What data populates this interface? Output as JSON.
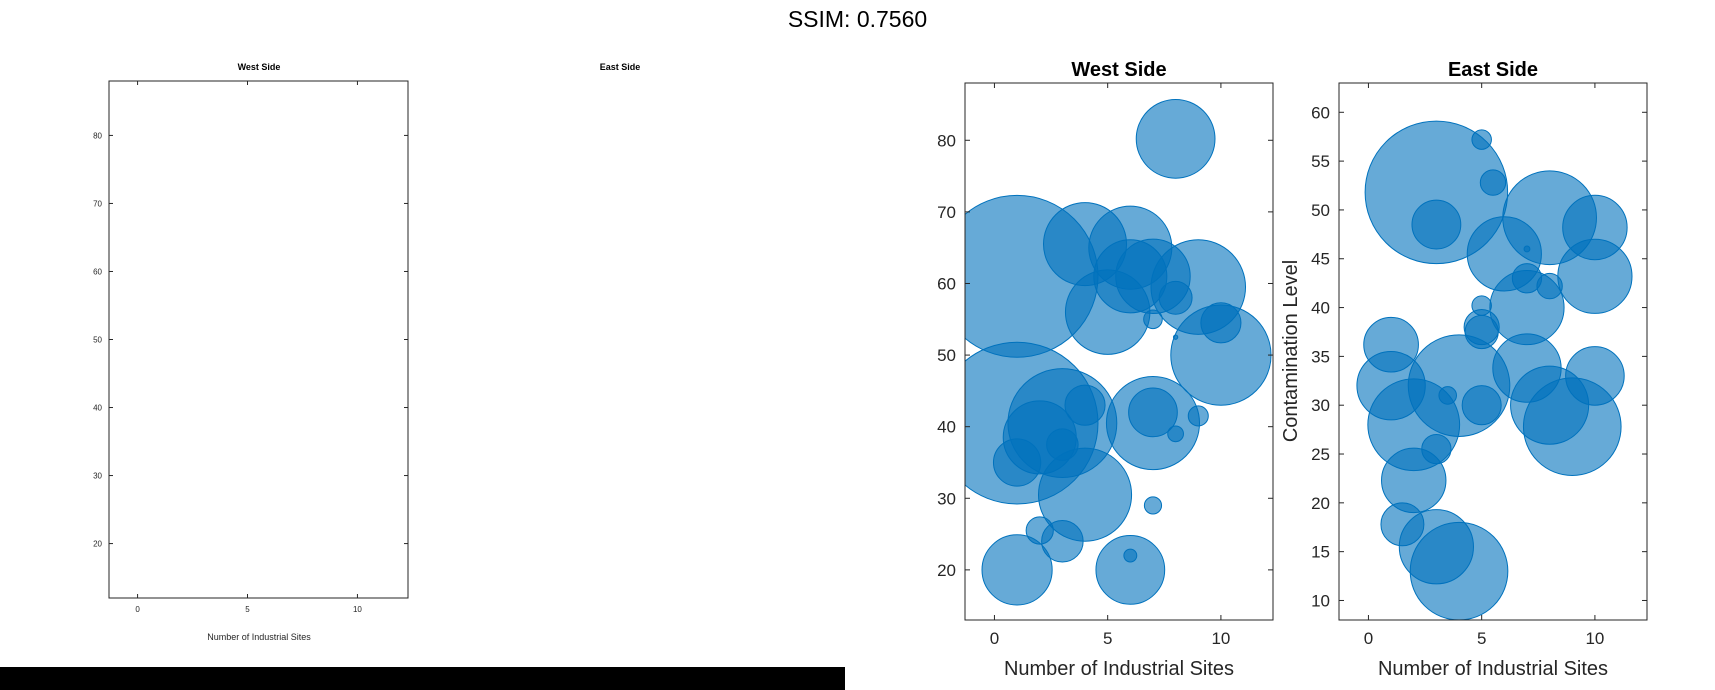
{
  "header": {
    "title": "SSIM: 0.7560"
  },
  "chart_data": [
    {
      "type": "scatter",
      "title": "West Side",
      "xlabel": "Number of Industrial Sites",
      "ylabel": "",
      "xlim": [
        -1.3,
        12.3
      ],
      "ylim": [
        12,
        88
      ],
      "xticks": [
        0,
        5,
        10
      ],
      "yticks": [
        20,
        30,
        40,
        50,
        60,
        70,
        80
      ],
      "points": []
    },
    {
      "type": "scatter",
      "title": "East Side",
      "xlabel": "",
      "ylabel": "",
      "points": []
    },
    {
      "type": "scatter",
      "title": "West Side",
      "xlabel": "Number of Industrial Sites",
      "ylabel": "",
      "xlim": [
        -1.3,
        12.3
      ],
      "ylim": [
        13,
        88
      ],
      "xticks": [
        0,
        5,
        10
      ],
      "yticks": [
        20,
        30,
        40,
        50,
        60,
        70,
        80
      ],
      "color": "#0072BD",
      "points": [
        {
          "x": 8,
          "y": 80.2,
          "r": 5.5
        },
        {
          "x": 1,
          "y": 61,
          "r": 11.3
        },
        {
          "x": 4,
          "y": 65.5,
          "r": 5.8
        },
        {
          "x": 6,
          "y": 65,
          "r": 5.8
        },
        {
          "x": 6,
          "y": 61,
          "r": 5.1
        },
        {
          "x": 7,
          "y": 61,
          "r": 5.2
        },
        {
          "x": 9,
          "y": 59.5,
          "r": 6.6
        },
        {
          "x": 5,
          "y": 56,
          "r": 5.9
        },
        {
          "x": 8,
          "y": 58,
          "r": 2.3
        },
        {
          "x": 7,
          "y": 55,
          "r": 1.3
        },
        {
          "x": 10,
          "y": 54.5,
          "r": 2.8
        },
        {
          "x": 10,
          "y": 50,
          "r": 7.0
        },
        {
          "x": 8,
          "y": 52.5,
          "r": 0.3
        },
        {
          "x": 1,
          "y": 40.5,
          "r": 11.3
        },
        {
          "x": 3,
          "y": 40.5,
          "r": 7.6
        },
        {
          "x": 4,
          "y": 43,
          "r": 2.8
        },
        {
          "x": 2,
          "y": 38.5,
          "r": 5.1
        },
        {
          "x": 1,
          "y": 35,
          "r": 3.3
        },
        {
          "x": 3,
          "y": 37.5,
          "r": 2.2
        },
        {
          "x": 7,
          "y": 42,
          "r": 3.4
        },
        {
          "x": 7,
          "y": 40.5,
          "r": 6.5
        },
        {
          "x": 9,
          "y": 41.5,
          "r": 1.4
        },
        {
          "x": 8,
          "y": 39,
          "r": 1.1
        },
        {
          "x": 4,
          "y": 30.5,
          "r": 6.5
        },
        {
          "x": 7,
          "y": 29,
          "r": 1.2
        },
        {
          "x": 2,
          "y": 25.5,
          "r": 1.9
        },
        {
          "x": 3,
          "y": 24,
          "r": 2.9
        },
        {
          "x": 1,
          "y": 20,
          "r": 4.9
        },
        {
          "x": 6,
          "y": 22,
          "r": 0.9
        },
        {
          "x": 6,
          "y": 20,
          "r": 4.8
        }
      ]
    },
    {
      "type": "scatter",
      "title": "East Side",
      "xlabel": "Number of Industrial Sites",
      "ylabel": "Contamination Level",
      "xlim": [
        -1.3,
        12.3
      ],
      "ylim": [
        8,
        63
      ],
      "xticks": [
        0,
        5,
        10
      ],
      "yticks": [
        10,
        15,
        20,
        25,
        30,
        35,
        40,
        45,
        50,
        55,
        60
      ],
      "color": "#0072BD",
      "points": [
        {
          "x": 5,
          "y": 57.2,
          "r": 1.0
        },
        {
          "x": 5.5,
          "y": 52.8,
          "r": 1.3
        },
        {
          "x": 3,
          "y": 51.8,
          "r": 7.3
        },
        {
          "x": 3,
          "y": 48.5,
          "r": 2.5
        },
        {
          "x": 8,
          "y": 49.2,
          "r": 4.8
        },
        {
          "x": 10,
          "y": 48.2,
          "r": 3.3
        },
        {
          "x": 6,
          "y": 45.5,
          "r": 3.8
        },
        {
          "x": 10,
          "y": 43.2,
          "r": 3.8
        },
        {
          "x": 7,
          "y": 46,
          "r": 0.3
        },
        {
          "x": 7,
          "y": 43,
          "r": 1.5
        },
        {
          "x": 8,
          "y": 42.2,
          "r": 1.3
        },
        {
          "x": 7,
          "y": 40,
          "r": 3.8
        },
        {
          "x": 5,
          "y": 40.2,
          "r": 1.0
        },
        {
          "x": 5,
          "y": 38,
          "r": 1.8
        },
        {
          "x": 5,
          "y": 37.5,
          "r": 1.7
        },
        {
          "x": 1,
          "y": 36.2,
          "r": 2.8
        },
        {
          "x": 1,
          "y": 32,
          "r": 3.5
        },
        {
          "x": 7,
          "y": 33.8,
          "r": 3.5
        },
        {
          "x": 10,
          "y": 33,
          "r": 3.0
        },
        {
          "x": 4,
          "y": 32,
          "r": 5.2
        },
        {
          "x": 8,
          "y": 30,
          "r": 4.0
        },
        {
          "x": 5,
          "y": 30,
          "r": 2.0
        },
        {
          "x": 3.5,
          "y": 31,
          "r": 0.9
        },
        {
          "x": 2,
          "y": 28,
          "r": 4.7
        },
        {
          "x": 9,
          "y": 27.8,
          "r": 5.0
        },
        {
          "x": 3,
          "y": 25.5,
          "r": 1.5
        },
        {
          "x": 2,
          "y": 22.3,
          "r": 3.3
        },
        {
          "x": 1.5,
          "y": 17.8,
          "r": 2.2
        },
        {
          "x": 3,
          "y": 15.5,
          "r": 3.8
        },
        {
          "x": 4,
          "y": 13,
          "r": 5.0
        }
      ]
    }
  ]
}
